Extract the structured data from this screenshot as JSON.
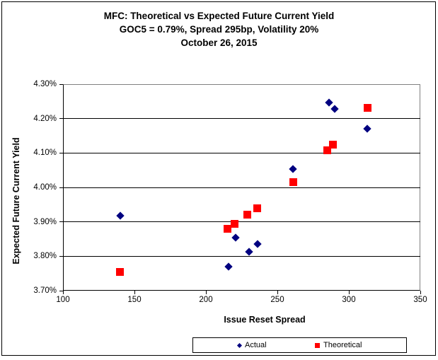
{
  "chart_data": {
    "type": "scatter",
    "title": "MFC: Theoretical vs Expected Future Current Yield",
    "subtitle": "GOC5 = 0.79%, Spread 295bp, Volatility 20%",
    "date_line": "October 26, 2015",
    "xlabel": "Issue Reset Spread",
    "ylabel": "Expected Future Current Yield",
    "xlim": [
      100,
      350
    ],
    "ylim": [
      3.7,
      4.3
    ],
    "x_ticks": [
      100,
      150,
      200,
      250,
      300,
      350
    ],
    "y_ticks": [
      4.3,
      4.2,
      4.1,
      4.0,
      3.9,
      3.8,
      3.7
    ],
    "y_tick_labels": [
      "4.30%",
      "4.20%",
      "4.10%",
      "4.00%",
      "3.90%",
      "3.80%",
      "3.70%"
    ],
    "grid": "horizontal",
    "legend_position": "bottom",
    "series": [
      {
        "name": "Actual",
        "marker": "diamond",
        "color": "#000080",
        "points": [
          [
            140,
            3.917
          ],
          [
            216,
            3.77
          ],
          [
            221,
            3.855
          ],
          [
            230,
            3.813
          ],
          [
            236,
            3.836
          ],
          [
            261,
            4.053
          ],
          [
            286,
            4.246
          ],
          [
            290,
            4.229
          ],
          [
            313,
            4.17
          ]
        ]
      },
      {
        "name": "Theoretical",
        "marker": "square",
        "color": "#FF0000",
        "points": [
          [
            140,
            3.754
          ],
          [
            215,
            3.879
          ],
          [
            220,
            3.894
          ],
          [
            229,
            3.92
          ],
          [
            236,
            3.939
          ],
          [
            261,
            4.015
          ],
          [
            285,
            4.107
          ],
          [
            289,
            4.124
          ],
          [
            313,
            4.231
          ]
        ]
      }
    ]
  },
  "colors": {
    "actual": "#000080",
    "theoretical": "#FF0000",
    "gridline": "#000000",
    "plot_border": "#808080",
    "outer_border": "#000000"
  }
}
